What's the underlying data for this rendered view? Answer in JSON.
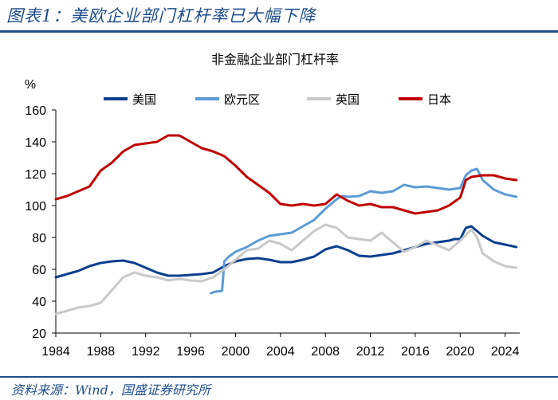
{
  "header": {
    "title": "图表1：美欧企业部门杠杆率已大幅下降"
  },
  "footer": {
    "source": "资料来源：Wind，国盛证券研究所"
  },
  "colors": {
    "us": "#0b3f8f",
    "eurozone": "#5b9bd5",
    "uk": "#c9c9c9",
    "japan": "#c00000",
    "brand": "#1f4e8c"
  },
  "chart_data": {
    "type": "line",
    "title": "非金融企业部门杠杆率",
    "ylabel": "%",
    "xlabel": "",
    "ylim": [
      20,
      160
    ],
    "xlim": [
      1984,
      2025.3
    ],
    "yticks": [
      20,
      40,
      60,
      80,
      100,
      120,
      140,
      160
    ],
    "xticks": [
      1984,
      1988,
      1992,
      1996,
      2000,
      2004,
      2008,
      2012,
      2016,
      2020,
      2024
    ],
    "grid": false,
    "legend_position": "top",
    "series": [
      {
        "key": "us",
        "name": "美国",
        "x": [
          1984,
          1985,
          1986,
          1987,
          1988,
          1989,
          1990,
          1991,
          1992,
          1993,
          1994,
          1995,
          1996,
          1997,
          1998,
          1999,
          2000,
          2001,
          2002,
          2003,
          2004,
          2005,
          2006,
          2007,
          2008,
          2009,
          2010,
          2011,
          2012,
          2013,
          2014,
          2015,
          2016,
          2017,
          2018,
          2019,
          2019.5,
          2020,
          2020.5,
          2021,
          2021.5,
          2022,
          2023,
          2024,
          2025
        ],
        "values": [
          55,
          57,
          59,
          62,
          64,
          65,
          65.5,
          64,
          61,
          58,
          56,
          56,
          56.5,
          57,
          58,
          62,
          65,
          66.5,
          67,
          66,
          64.5,
          64.5,
          66,
          68,
          72.5,
          74.5,
          72,
          68.5,
          68,
          69,
          70,
          72,
          74,
          76,
          77,
          78,
          79,
          79,
          86,
          87,
          84,
          81,
          77,
          75.5,
          74
        ]
      },
      {
        "key": "eurozone",
        "name": "欧元区",
        "x": [
          1997.8,
          1998.2,
          1998.8,
          1999.0,
          1999.4,
          2000,
          2001,
          2002,
          2003,
          2004,
          2005,
          2006,
          2007,
          2008,
          2009,
          2009.5,
          2010,
          2011,
          2012,
          2013,
          2014,
          2015,
          2016,
          2017,
          2018,
          2019,
          2020,
          2020.5,
          2021,
          2021.5,
          2022,
          2023,
          2024,
          2025
        ],
        "values": [
          45,
          46,
          46.5,
          65,
          68,
          71,
          74,
          78,
          81,
          82,
          83,
          87,
          91,
          98,
          104,
          106,
          105.5,
          106,
          109,
          108,
          109,
          113,
          111.5,
          112,
          111,
          110,
          111,
          119,
          122,
          123,
          116,
          110,
          107,
          105.5
        ]
      },
      {
        "key": "uk",
        "name": "英国",
        "x": [
          1984,
          1985,
          1986,
          1987,
          1988,
          1989,
          1990,
          1991,
          1992,
          1993,
          1994,
          1995,
          1996,
          1997,
          1998,
          1999,
          2000,
          2001,
          2002,
          2003,
          2004,
          2005,
          2006,
          2007,
          2008,
          2009,
          2010,
          2011,
          2012,
          2013,
          2014,
          2015,
          2016,
          2017,
          2018,
          2019,
          2020,
          2021,
          2021.5,
          2022,
          2023,
          2024,
          2025
        ],
        "values": [
          32,
          34,
          36,
          37,
          39,
          47,
          55,
          58,
          56,
          55,
          53,
          54,
          53,
          52.5,
          55,
          60,
          66,
          72,
          73,
          78,
          76,
          72,
          78,
          84,
          88,
          86,
          80,
          79,
          78,
          83,
          77,
          71,
          74,
          78,
          75,
          72,
          78,
          85,
          80,
          70,
          65,
          62,
          61
        ]
      },
      {
        "key": "japan",
        "name": "日本",
        "x": [
          1984,
          1985,
          1986,
          1987,
          1988,
          1989,
          1990,
          1991,
          1992,
          1993,
          1994,
          1995,
          1996,
          1997,
          1998,
          1999,
          2000,
          2001,
          2002,
          2003,
          2004,
          2005,
          2006,
          2007,
          2008,
          2009,
          2010,
          2011,
          2012,
          2013,
          2014,
          2015,
          2016,
          2017,
          2018,
          2019,
          2020,
          2020.5,
          2021,
          2022,
          2023,
          2024,
          2025
        ],
        "values": [
          104,
          106,
          109,
          112,
          122,
          127,
          134,
          138,
          139,
          140,
          144,
          144,
          140,
          136,
          134,
          131,
          125,
          118,
          113,
          108,
          101,
          100,
          101,
          100,
          101,
          107,
          103,
          100,
          101,
          99,
          99,
          97,
          95,
          96,
          97,
          100,
          105,
          116,
          118,
          119,
          119,
          117,
          116
        ]
      }
    ]
  }
}
